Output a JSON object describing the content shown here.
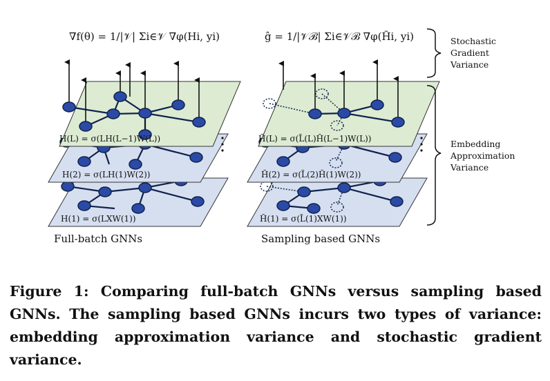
{
  "figure": {
    "left_formula": "∇f(θ) = 1/|𝒱| Σi∈𝒱 ∇φ(Hi, yi)",
    "right_formula": "ĝ = 1/|𝒱ℬ| Σi∈𝒱ℬ ∇φ(H̃i, yi)",
    "left_layer_labels": [
      "H(L) = σ(LH(L−1)W(L))",
      "H(2) = σ(LH(1)W(2))",
      "H(1) = σ(LXW(1))"
    ],
    "right_layer_labels": [
      "H̃(L) = σ(L̃(L)H̃(L−1)W(L))",
      "H̃(2) = σ(L̃(2)H̃(1)W(2))",
      "H̃(1) = σ(L̃(1)XW(1))"
    ],
    "left_panel_caption": "Full-batch GNNs",
    "right_panel_caption": "Sampling based GNNs",
    "bracket_labels": {
      "stochastic": [
        "Stochastic",
        "Gradient",
        "Variance"
      ],
      "embedding": [
        "Embedding",
        "Approximation",
        "Variance"
      ]
    },
    "colors": {
      "top_layer": "#dcebd2",
      "lower_layers": "#d6dff0",
      "node_fill": "#2b4aa6",
      "node_stroke": "#10224d"
    }
  },
  "caption": "Figure 1: Comparing full-batch GNNs versus sampling based GNNs. The sampling based GNNs incurs two types of variance: embedding approximation variance and stochastic gradient variance."
}
